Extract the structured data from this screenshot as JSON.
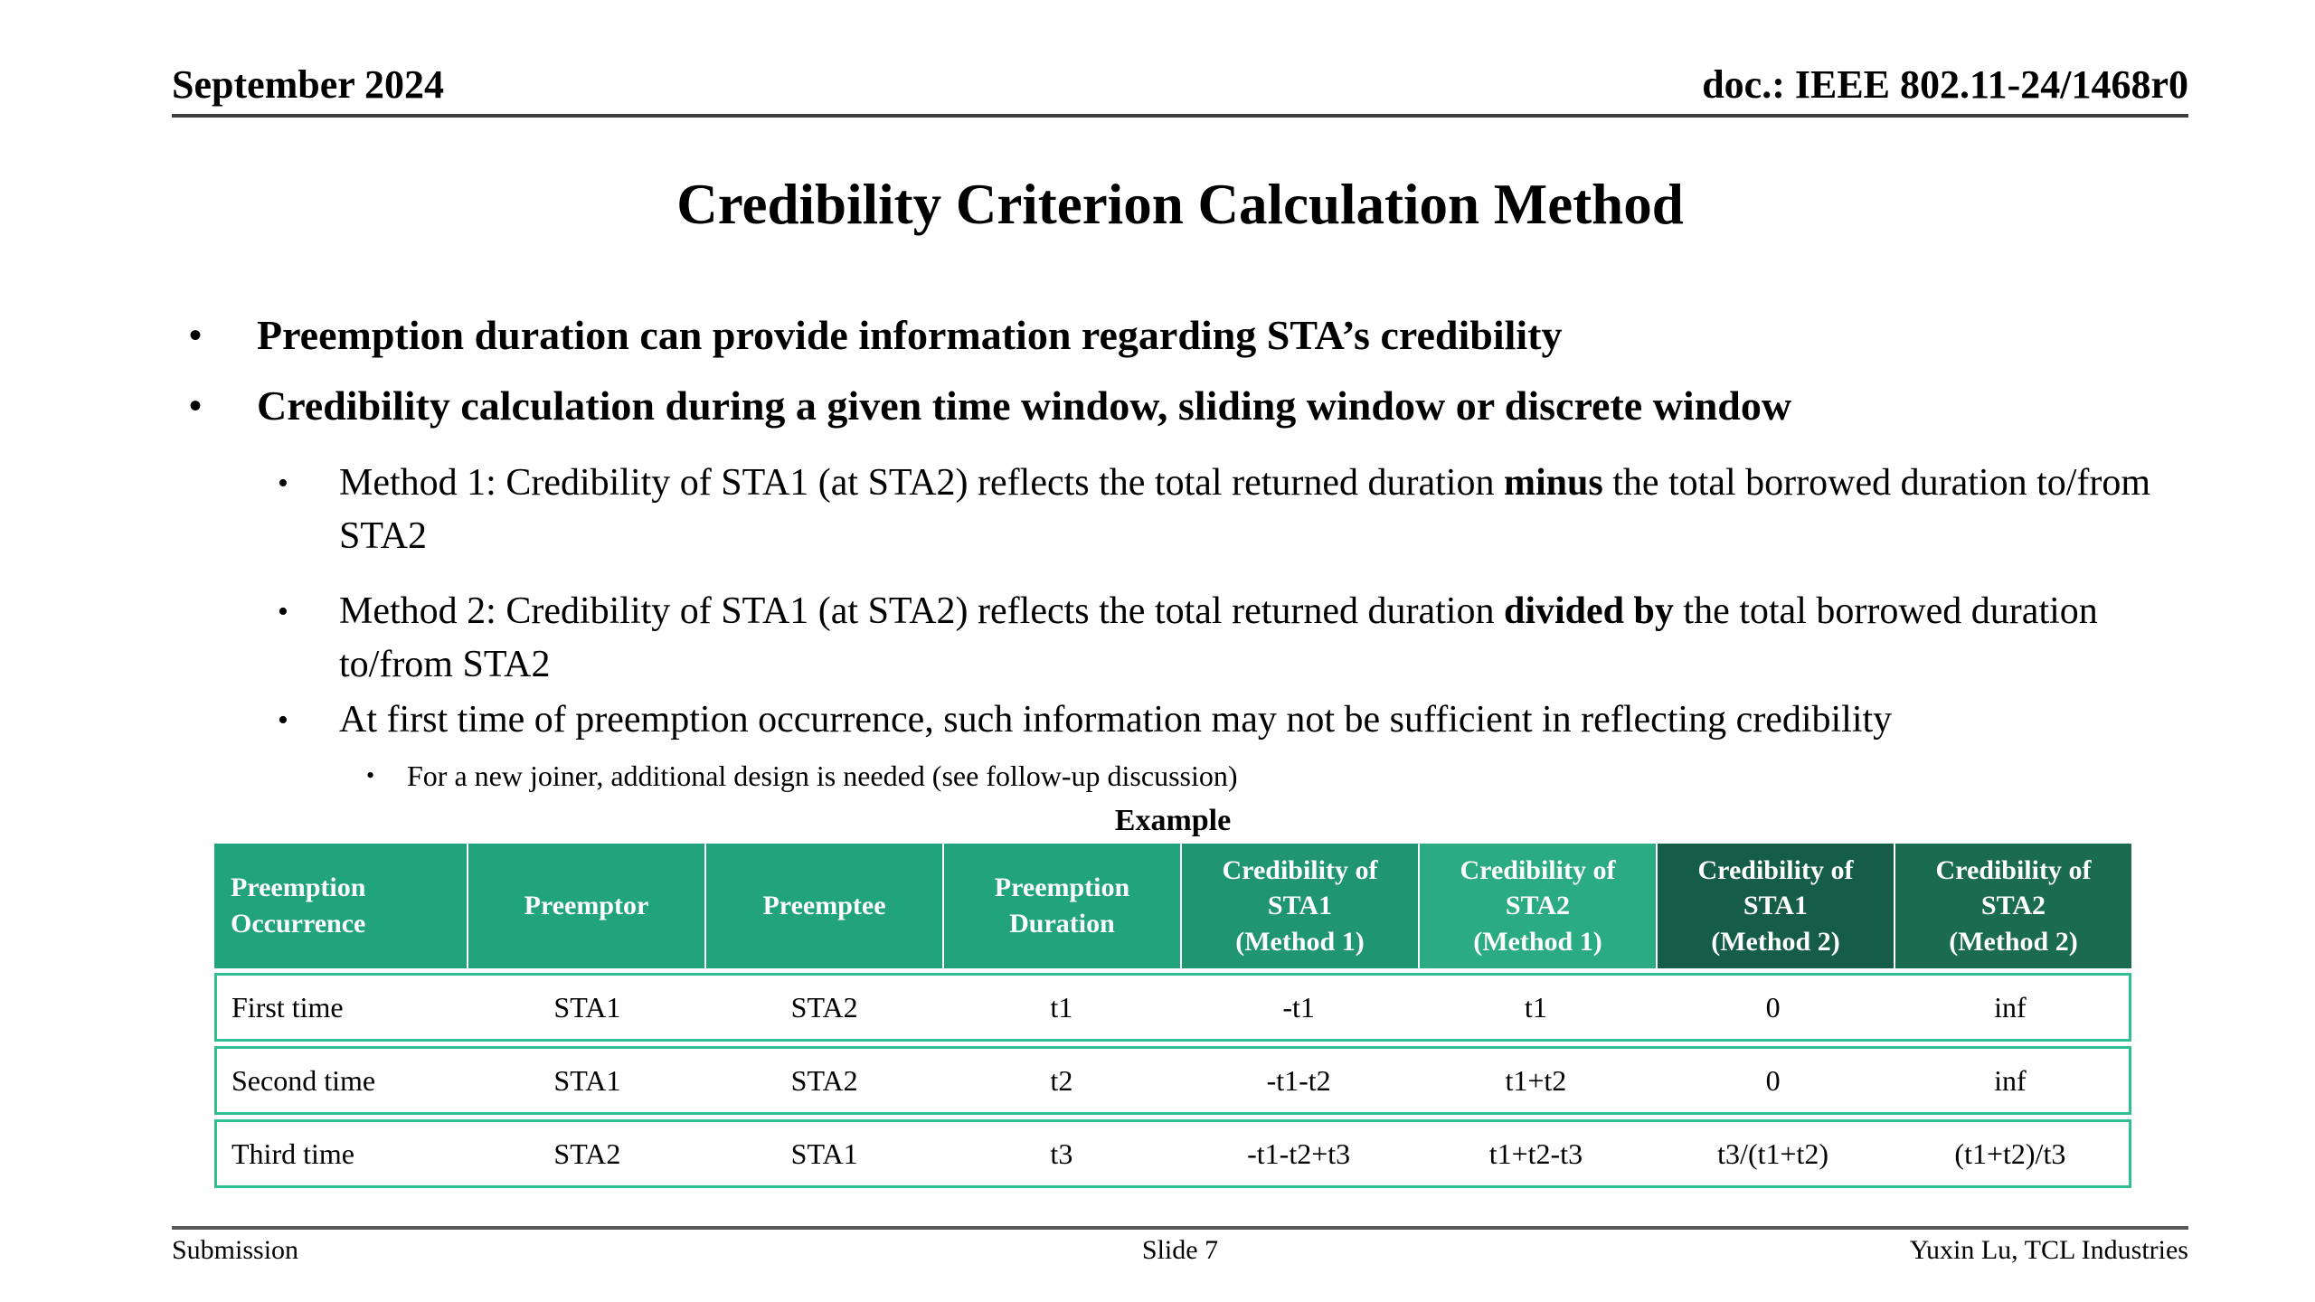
{
  "bullet_char": "•",
  "header": {
    "date": "September 2024",
    "doc": "doc.: IEEE 802.11-24/1468r0",
    "rule_color": "#3d3d3d"
  },
  "title": "Credibility Criterion Calculation Method",
  "bullets": {
    "b1": "Preemption duration can provide information regarding STA’s credibility",
    "b2": "Credibility calculation during a given time window, sliding window or discrete window",
    "m1": {
      "pre": "Method 1: Credibility of STA1 (at STA2) reflects the total returned duration ",
      "bold": "minus",
      "post": " the total borrowed duration to/from STA2"
    },
    "m2": {
      "pre": "Method 2: Credibility of STA1 (at STA2) reflects the total returned duration ",
      "bold": "divided by",
      "post": " the total borrowed duration to/from STA2"
    },
    "b5": "At first time of preemption occurrence, such information may not be sufficient in reflecting credibility",
    "b6": "For a new joiner, additional design is needed (see follow-up discussion)"
  },
  "example_label": "Example",
  "table": {
    "border_color": "#30BE93",
    "header_text_color": "#ffffff",
    "columns": [
      {
        "label": "Preemption\nOccurrence",
        "bg": "#21A37B"
      },
      {
        "label": "Preemptor",
        "bg": "#21A37B"
      },
      {
        "label": "Preemptee",
        "bg": "#21A37B"
      },
      {
        "label": "Preemption\nDuration",
        "bg": "#21A37B"
      },
      {
        "label": "Credibility of\nSTA1\n(Method 1)",
        "bg": "#1F9572"
      },
      {
        "label": "Credibility of\nSTA2\n(Method 1)",
        "bg": "#2BAB81"
      },
      {
        "label": "Credibility of\nSTA1\n(Method 2)",
        "bg": "#155D46"
      },
      {
        "label": "Credibility of\nSTA2\n(Method 2)",
        "bg": "#1A6B50"
      }
    ],
    "rows": [
      {
        "cells": [
          "First time",
          "STA1",
          "STA2",
          "t1",
          "-t1",
          "t1",
          "0",
          "inf"
        ]
      },
      {
        "cells": [
          "Second time",
          "STA1",
          "STA2",
          "t2",
          "-t1-t2",
          "t1+t2",
          "0",
          "inf"
        ]
      },
      {
        "cells": [
          "Third time",
          "STA2",
          "STA1",
          "t3",
          "-t1-t2+t3",
          "t1+t2-t3",
          "t3/(t1+t2)",
          "(t1+t2)/t3"
        ]
      }
    ]
  },
  "footer": {
    "left": "Submission",
    "center": "Slide 7",
    "right": "Yuxin Lu, TCL Industries",
    "rule_color": "#595959"
  }
}
